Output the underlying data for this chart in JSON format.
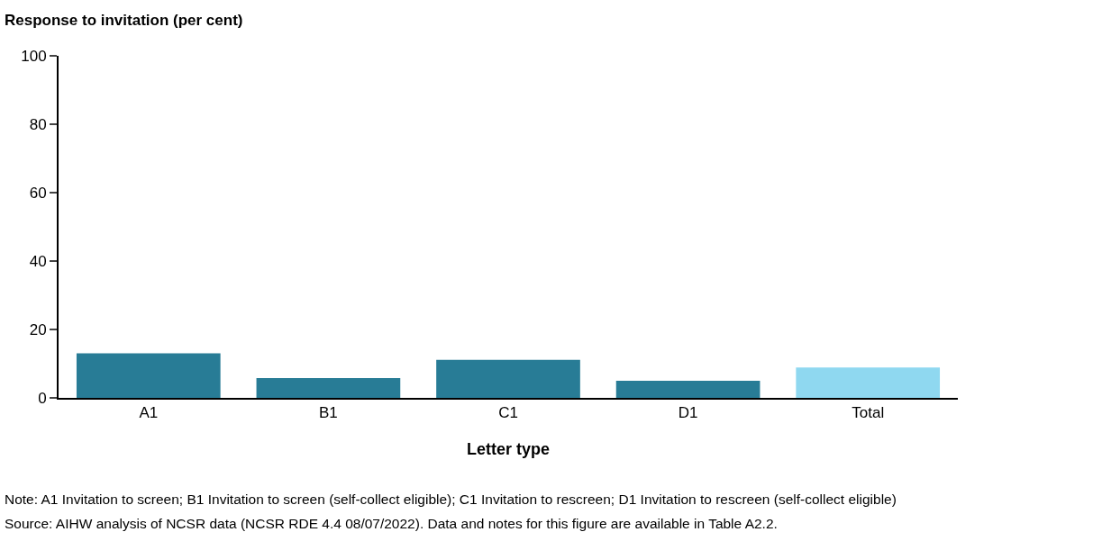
{
  "chart_data": {
    "type": "bar",
    "ylabel": "Response to invitation (per cent)",
    "xlabel": "Letter type",
    "categories": [
      "A1",
      "B1",
      "C1",
      "D1",
      "Total"
    ],
    "values": [
      13,
      5.8,
      11.1,
      5.0,
      8.9
    ],
    "colors": [
      "#287c96",
      "#287c96",
      "#287c96",
      "#287c96",
      "#8fd8f0"
    ],
    "ylim": [
      0,
      100
    ],
    "yticks": [
      0,
      20,
      40,
      60,
      80,
      100
    ],
    "annotations": [
      "Note: A1 Invitation to screen; B1 Invitation to screen (self-collect eligible); C1 Invitation to rescreen; D1 Invitation to rescreen (self-collect eligible)",
      "Source: AIHW analysis of NCSR data (NCSR RDE 4.4 08/07/2022). Data and notes for this figure are available in Table A2.2."
    ]
  }
}
